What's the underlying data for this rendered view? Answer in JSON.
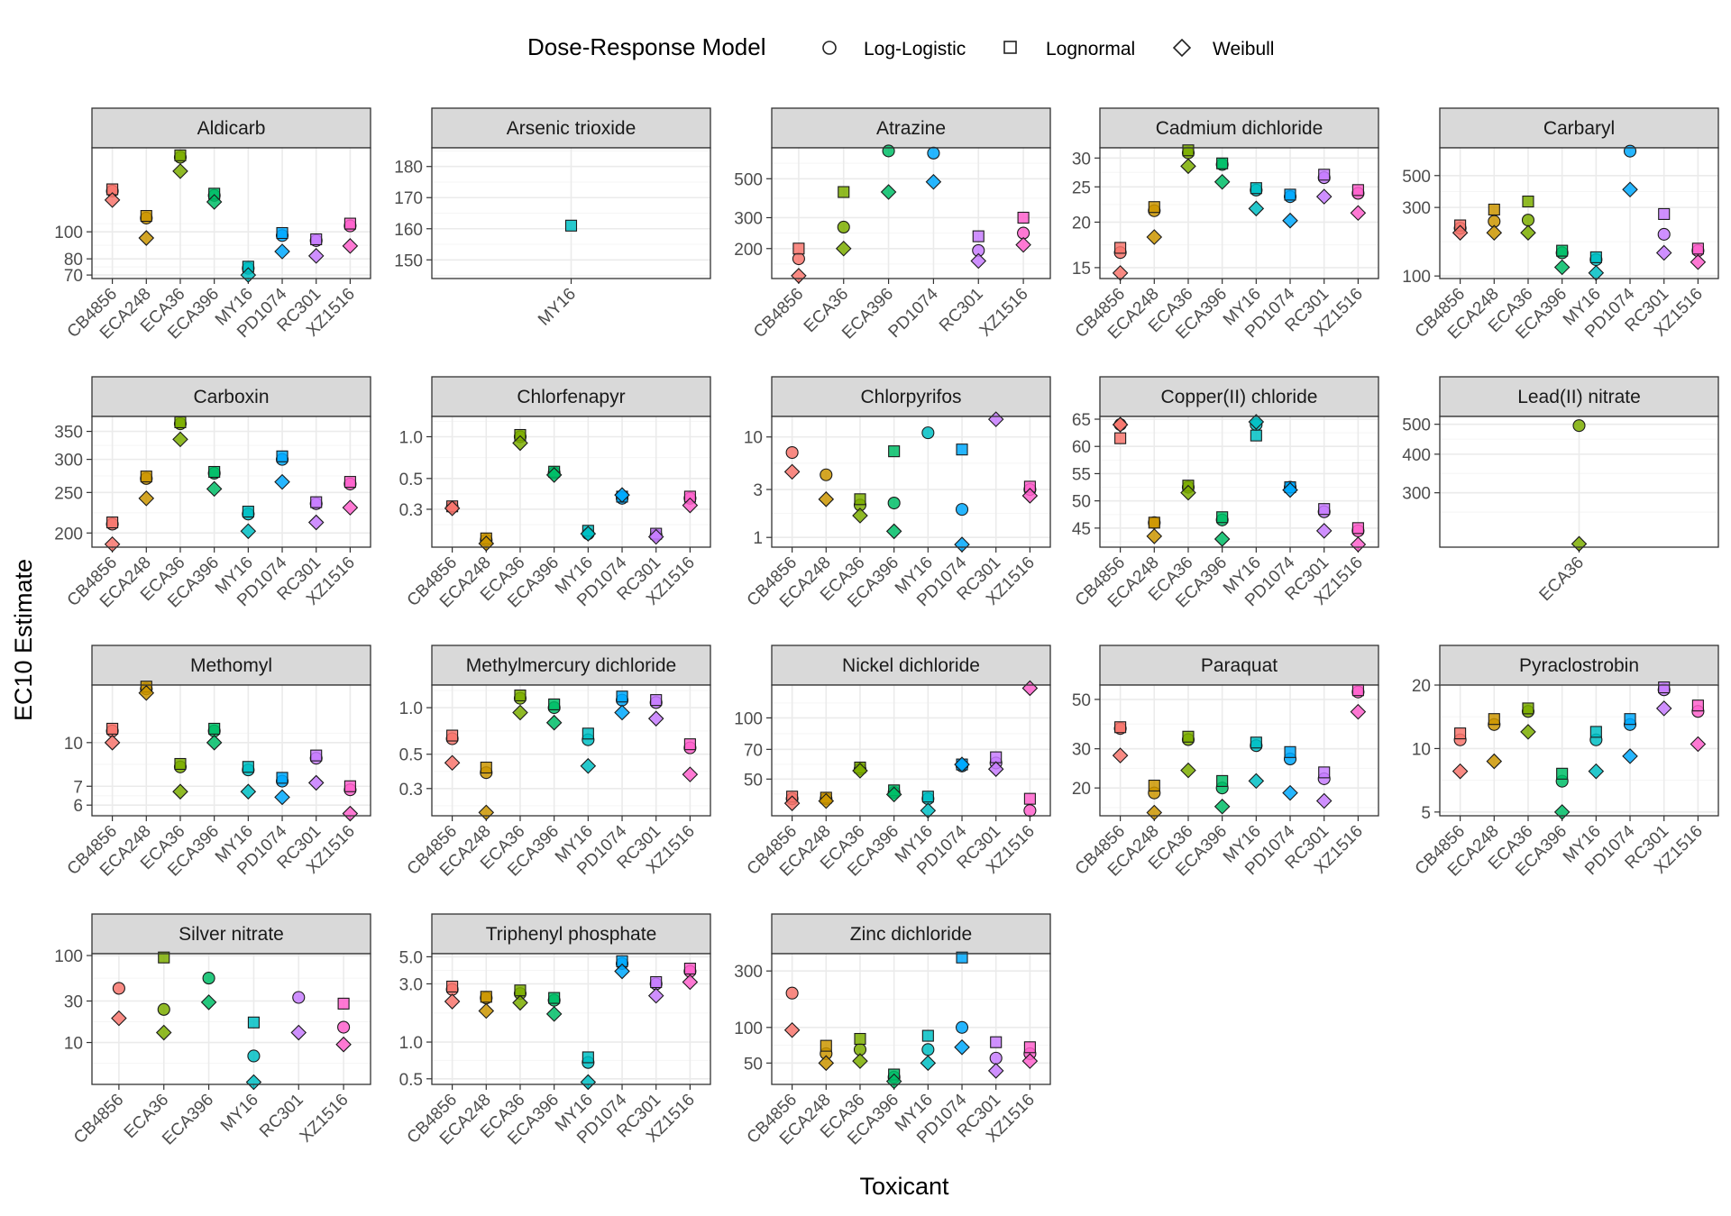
{
  "legend": {
    "title": "Dose-Response Model",
    "items": [
      "Log-Logistic",
      "Lognormal",
      "Weibull"
    ]
  },
  "xlabel": "Toxicant",
  "ylabel": "EC10 Estimate",
  "strain_colors": {
    "CB4856": "#F8766D",
    "ECA248": "#CD9600",
    "ECA36": "#7CAE00",
    "ECA396": "#00BE67",
    "MY16": "#00BFC4",
    "PD1074": "#00A9FF",
    "RC301": "#C77CFF",
    "XZ1516": "#FF61CC"
  },
  "panel_colors": {
    "strip_fill": "#d9d9d9",
    "strip_border": "#333333",
    "grid_major": "#ebebeb",
    "grid_minor": "#f5f5f5"
  },
  "chart_data": [
    {
      "title": "Aldicarb",
      "type": "scatter",
      "scale": "log",
      "ylim": [
        68,
        200
      ],
      "yticks": [
        70,
        80,
        100
      ],
      "categories": [
        "CB4856",
        "ECA248",
        "ECA36",
        "ECA396",
        "MY16",
        "PD1074",
        "RC301",
        "XZ1516"
      ],
      "series": [
        {
          "name": "Log-Logistic",
          "values": [
            140,
            112,
            185,
            135,
            74,
            97,
            93,
            105
          ]
        },
        {
          "name": "Lognormal",
          "values": [
            142,
            114,
            188,
            137,
            75,
            99,
            94,
            107
          ]
        },
        {
          "name": "Weibull",
          "values": [
            130,
            95,
            165,
            128,
            70,
            85,
            82,
            89
          ]
        }
      ]
    },
    {
      "title": "Arsenic trioxide",
      "type": "scatter",
      "scale": "linear",
      "ylim": [
        144,
        186
      ],
      "yticks": [
        150,
        160,
        170,
        180
      ],
      "categories": [
        "MY16"
      ],
      "series": [
        {
          "name": "Log-Logistic",
          "values": [
            null
          ]
        },
        {
          "name": "Lognormal",
          "values": [
            161
          ]
        },
        {
          "name": "Weibull",
          "values": [
            null
          ]
        }
      ]
    },
    {
      "title": "Atrazine",
      "type": "scatter",
      "scale": "log",
      "ylim": [
        135,
        750
      ],
      "yticks": [
        200,
        300,
        500
      ],
      "categories": [
        "CB4856",
        "ECA36",
        "ECA396",
        "PD1074",
        "RC301",
        "XZ1516"
      ],
      "series": [
        {
          "name": "Log-Logistic",
          "values": [
            175,
            265,
            720,
            700,
            195,
            245
          ]
        },
        {
          "name": "Lognormal",
          "values": [
            200,
            420,
            null,
            null,
            235,
            300
          ]
        },
        {
          "name": "Weibull",
          "values": [
            140,
            200,
            420,
            480,
            170,
            210
          ]
        }
      ]
    },
    {
      "title": "Cadmium dichloride",
      "type": "scatter",
      "scale": "log",
      "ylim": [
        14,
        32
      ],
      "yticks": [
        15,
        20,
        25,
        30
      ],
      "categories": [
        "CB4856",
        "ECA248",
        "ECA36",
        "ECA396",
        "MY16",
        "PD1074",
        "RC301",
        "XZ1516"
      ],
      "series": [
        {
          "name": "Log-Logistic",
          "values": [
            16.5,
            21.5,
            31,
            28.8,
            24.5,
            23.5,
            26.5,
            24
          ]
        },
        {
          "name": "Lognormal",
          "values": [
            17,
            22,
            31.5,
            29,
            24.8,
            23.8,
            27,
            24.5
          ]
        },
        {
          "name": "Weibull",
          "values": [
            14.5,
            18.2,
            28.5,
            25.8,
            21.8,
            20.2,
            23.5,
            21.2
          ]
        }
      ]
    },
    {
      "title": "Carbaryl",
      "type": "scatter",
      "scale": "log",
      "ylim": [
        96,
        780
      ],
      "yticks": [
        100,
        300,
        500
      ],
      "categories": [
        "CB4856",
        "ECA248",
        "ECA36",
        "ECA396",
        "MY16",
        "PD1074",
        "RC301",
        "XZ1516"
      ],
      "series": [
        {
          "name": "Log-Logistic",
          "values": [
            215,
            240,
            245,
            145,
            130,
            740,
            195,
            150
          ]
        },
        {
          "name": "Lognormal",
          "values": [
            225,
            290,
            330,
            150,
            135,
            null,
            270,
            155
          ]
        },
        {
          "name": "Weibull",
          "values": [
            200,
            200,
            200,
            115,
            105,
            400,
            145,
            125
          ]
        }
      ]
    },
    {
      "title": "Carboxin",
      "type": "scatter",
      "scale": "log",
      "ylim": [
        185,
        380
      ],
      "yticks": [
        200,
        250,
        300,
        350
      ],
      "categories": [
        "CB4856",
        "ECA248",
        "ECA36",
        "ECA396",
        "MY16",
        "PD1074",
        "RC301",
        "XZ1516"
      ],
      "series": [
        {
          "name": "Log-Logistic",
          "values": [
            210,
            270,
            365,
            278,
            222,
            300,
            235,
            262
          ]
        },
        {
          "name": "Lognormal",
          "values": [
            212,
            273,
            368,
            280,
            225,
            305,
            237,
            265
          ]
        },
        {
          "name": "Weibull",
          "values": [
            188,
            242,
            335,
            255,
            202,
            265,
            212,
            230
          ]
        }
      ]
    },
    {
      "title": "Chlorfenapyr",
      "type": "scatter",
      "scale": "log",
      "ylim": [
        0.16,
        1.4
      ],
      "yticks": [
        0.3,
        0.5,
        1.0
      ],
      "ytick_labels": [
        "0.3",
        "0.5",
        "1.0"
      ],
      "categories": [
        "CB4856",
        "ECA248",
        "ECA36",
        "ECA396",
        "MY16",
        "PD1074",
        "RC301",
        "XZ1516"
      ],
      "series": [
        {
          "name": "Log-Logistic",
          "values": [
            0.31,
            0.18,
            1.0,
            0.55,
            0.2,
            0.36,
            0.195,
            0.36
          ]
        },
        {
          "name": "Lognormal",
          "values": [
            0.315,
            0.185,
            1.03,
            0.56,
            0.21,
            0.37,
            0.2,
            0.37
          ]
        },
        {
          "name": "Weibull",
          "values": [
            0.305,
            0.17,
            0.9,
            0.53,
            0.2,
            0.38,
            0.19,
            0.32
          ]
        }
      ]
    },
    {
      "title": "Chlorpyrifos",
      "type": "scatter",
      "scale": "log",
      "ylim": [
        0.8,
        16
      ],
      "yticks": [
        1,
        3,
        10
      ],
      "categories": [
        "CB4856",
        "ECA248",
        "ECA36",
        "ECA396",
        "MY16",
        "PD1074",
        "RC301",
        "XZ1516"
      ],
      "series": [
        {
          "name": "Log-Logistic",
          "values": [
            7,
            4.2,
            2.1,
            2.2,
            11,
            1.9,
            null,
            3
          ]
        },
        {
          "name": "Lognormal",
          "values": [
            null,
            null,
            2.4,
            7.2,
            null,
            7.5,
            null,
            3.2
          ]
        },
        {
          "name": "Weibull",
          "values": [
            4.5,
            2.4,
            1.65,
            1.15,
            null,
            0.85,
            15,
            2.6
          ]
        }
      ]
    },
    {
      "title": "Copper(II) chloride",
      "type": "scatter",
      "scale": "linear",
      "ylim": [
        41.5,
        65.5
      ],
      "yticks": [
        45,
        50,
        55,
        60,
        65
      ],
      "categories": [
        "CB4856",
        "ECA248",
        "ECA36",
        "ECA396",
        "MY16",
        "PD1074",
        "RC301",
        "XZ1516"
      ],
      "series": [
        {
          "name": "Log-Logistic",
          "values": [
            64,
            46,
            52.5,
            46.5,
            64,
            52.5,
            48,
            44.5
          ]
        },
        {
          "name": "Lognormal",
          "values": [
            61.5,
            46,
            52.8,
            47,
            62,
            52.5,
            48.5,
            45
          ]
        },
        {
          "name": "Weibull",
          "values": [
            64,
            43.5,
            51.5,
            43,
            64.5,
            52,
            44.5,
            42
          ]
        }
      ]
    },
    {
      "title": "Lead(II) nitrate",
      "type": "scatter",
      "scale": "log",
      "ylim": [
        200,
        530
      ],
      "yticks": [
        300,
        400,
        500
      ],
      "categories": [
        "ECA36"
      ],
      "series": [
        {
          "name": "Log-Logistic",
          "values": [
            495
          ]
        },
        {
          "name": "Lognormal",
          "values": [
            null
          ]
        },
        {
          "name": "Weibull",
          "values": [
            205
          ]
        }
      ]
    },
    {
      "title": "Methomyl",
      "type": "scatter",
      "scale": "log",
      "ylim": [
        5.5,
        16
      ],
      "yticks": [
        6,
        7,
        10
      ],
      "categories": [
        "CB4856",
        "ECA248",
        "ECA36",
        "ECA396",
        "MY16",
        "PD1074",
        "RC301",
        "XZ1516"
      ],
      "series": [
        {
          "name": "Log-Logistic",
          "values": [
            11,
            15.5,
            8.2,
            11,
            8,
            7.3,
            8.8,
            6.8
          ]
        },
        {
          "name": "Lognormal",
          "values": [
            11.2,
            15.8,
            8.4,
            11.2,
            8.2,
            7.5,
            9,
            7
          ]
        },
        {
          "name": "Weibull",
          "values": [
            10,
            15,
            6.7,
            10,
            6.7,
            6.4,
            7.2,
            5.6
          ]
        }
      ]
    },
    {
      "title": "Methylmercury dichloride",
      "type": "scatter",
      "scale": "log",
      "ylim": [
        0.2,
        1.4
      ],
      "yticks": [
        0.3,
        0.5,
        1.0
      ],
      "ytick_labels": [
        "0.3",
        "0.5",
        "1.0"
      ],
      "categories": [
        "CB4856",
        "ECA248",
        "ECA36",
        "ECA396",
        "MY16",
        "PD1074",
        "RC301",
        "XZ1516"
      ],
      "series": [
        {
          "name": "Log-Logistic",
          "values": [
            0.63,
            0.38,
            1.15,
            1.0,
            0.62,
            1.12,
            1.08,
            0.55
          ]
        },
        {
          "name": "Lognormal",
          "values": [
            0.66,
            0.41,
            1.2,
            1.05,
            0.68,
            1.18,
            1.12,
            0.58
          ]
        },
        {
          "name": "Weibull",
          "values": [
            0.44,
            0.21,
            0.93,
            0.8,
            0.42,
            0.93,
            0.85,
            0.37
          ]
        }
      ]
    },
    {
      "title": "Nickel dichloride",
      "type": "scatter",
      "scale": "log",
      "ylim": [
        33,
        145
      ],
      "yticks": [
        50,
        70,
        100
      ],
      "categories": [
        "CB4856",
        "ECA248",
        "ECA36",
        "ECA396",
        "MY16",
        "PD1074",
        "RC301",
        "XZ1516"
      ],
      "series": [
        {
          "name": "Log-Logistic",
          "values": [
            40,
            40,
            56,
            43,
            40,
            58,
            60,
            35
          ]
        },
        {
          "name": "Lognormal",
          "values": [
            41,
            40.5,
            57,
            44,
            41,
            59,
            64,
            40
          ]
        },
        {
          "name": "Weibull",
          "values": [
            38,
            39,
            55,
            42,
            35,
            59,
            56,
            140
          ]
        }
      ]
    },
    {
      "title": "Paraquat",
      "type": "scatter",
      "scale": "log",
      "ylim": [
        15,
        58
      ],
      "yticks": [
        20,
        30,
        50
      ],
      "categories": [
        "CB4856",
        "ECA248",
        "ECA36",
        "ECA396",
        "MY16",
        "PD1074",
        "RC301",
        "XZ1516"
      ],
      "series": [
        {
          "name": "Log-Logistic",
          "values": [
            37,
            19,
            33,
            20,
            31,
            27,
            22,
            54
          ]
        },
        {
          "name": "Lognormal",
          "values": [
            37.5,
            20.5,
            34,
            21.5,
            32,
            29,
            23.5,
            55
          ]
        },
        {
          "name": "Weibull",
          "values": [
            28,
            15.5,
            24,
            16.5,
            21.5,
            19,
            17.5,
            44
          ]
        }
      ]
    },
    {
      "title": "Pyraclostrobin",
      "type": "scatter",
      "scale": "log",
      "ylim": [
        4.8,
        20
      ],
      "yticks": [
        5,
        10,
        20
      ],
      "categories": [
        "CB4856",
        "ECA248",
        "ECA36",
        "ECA396",
        "MY16",
        "PD1074",
        "RC301",
        "XZ1516"
      ],
      "series": [
        {
          "name": "Log-Logistic",
          "values": [
            11,
            13,
            15,
            7,
            11,
            13,
            19,
            15
          ]
        },
        {
          "name": "Lognormal",
          "values": [
            11.8,
            13.8,
            15.5,
            7.6,
            12,
            13.8,
            19.5,
            16
          ]
        },
        {
          "name": "Weibull",
          "values": [
            7.8,
            8.7,
            12,
            5,
            7.8,
            9.2,
            15.5,
            10.5
          ]
        }
      ]
    },
    {
      "title": "Silver nitrate",
      "type": "scatter",
      "scale": "log",
      "ylim": [
        3.3,
        105
      ],
      "yticks": [
        10,
        30,
        100
      ],
      "categories": [
        "CB4856",
        "ECA36",
        "ECA396",
        "MY16",
        "RC301",
        "XZ1516"
      ],
      "series": [
        {
          "name": "Log-Logistic",
          "values": [
            42,
            24,
            55,
            7,
            33,
            15
          ]
        },
        {
          "name": "Lognormal",
          "values": [
            null,
            95,
            null,
            17,
            null,
            28
          ]
        },
        {
          "name": "Weibull",
          "values": [
            19,
            13,
            29,
            3.5,
            13,
            9.5
          ]
        }
      ]
    },
    {
      "title": "Triphenyl phosphate",
      "type": "scatter",
      "scale": "log",
      "ylim": [
        0.45,
        5.3
      ],
      "yticks": [
        0.5,
        1.0,
        3.0,
        5.0
      ],
      "ytick_labels": [
        "0.5",
        "1.0",
        "3.0",
        "5.0"
      ],
      "categories": [
        "CB4856",
        "ECA248",
        "ECA36",
        "ECA396",
        "MY16",
        "PD1074",
        "RC301",
        "XZ1516"
      ],
      "series": [
        {
          "name": "Log-Logistic",
          "values": [
            2.7,
            2.3,
            2.5,
            2.2,
            0.68,
            4.4,
            3,
            3.8
          ]
        },
        {
          "name": "Lognormal",
          "values": [
            2.85,
            2.35,
            2.65,
            2.3,
            0.75,
            4.6,
            3.1,
            4
          ]
        },
        {
          "name": "Weibull",
          "values": [
            2.15,
            1.8,
            2.1,
            1.7,
            0.47,
            3.8,
            2.4,
            3.1
          ]
        }
      ]
    },
    {
      "title": "Zinc dichloride",
      "type": "scatter",
      "scale": "log",
      "ylim": [
        33,
        420
      ],
      "yticks": [
        50,
        100,
        300
      ],
      "categories": [
        "CB4856",
        "ECA248",
        "ECA36",
        "ECA396",
        "MY16",
        "PD1074",
        "RC301",
        "XZ1516"
      ],
      "series": [
        {
          "name": "Log-Logistic",
          "values": [
            195,
            60,
            65,
            38,
            65,
            100,
            55,
            60
          ]
        },
        {
          "name": "Lognormal",
          "values": [
            null,
            70,
            80,
            40,
            85,
            390,
            75,
            68
          ]
        },
        {
          "name": "Weibull",
          "values": [
            95,
            50,
            52,
            35,
            50,
            68,
            43,
            52
          ]
        }
      ]
    }
  ]
}
